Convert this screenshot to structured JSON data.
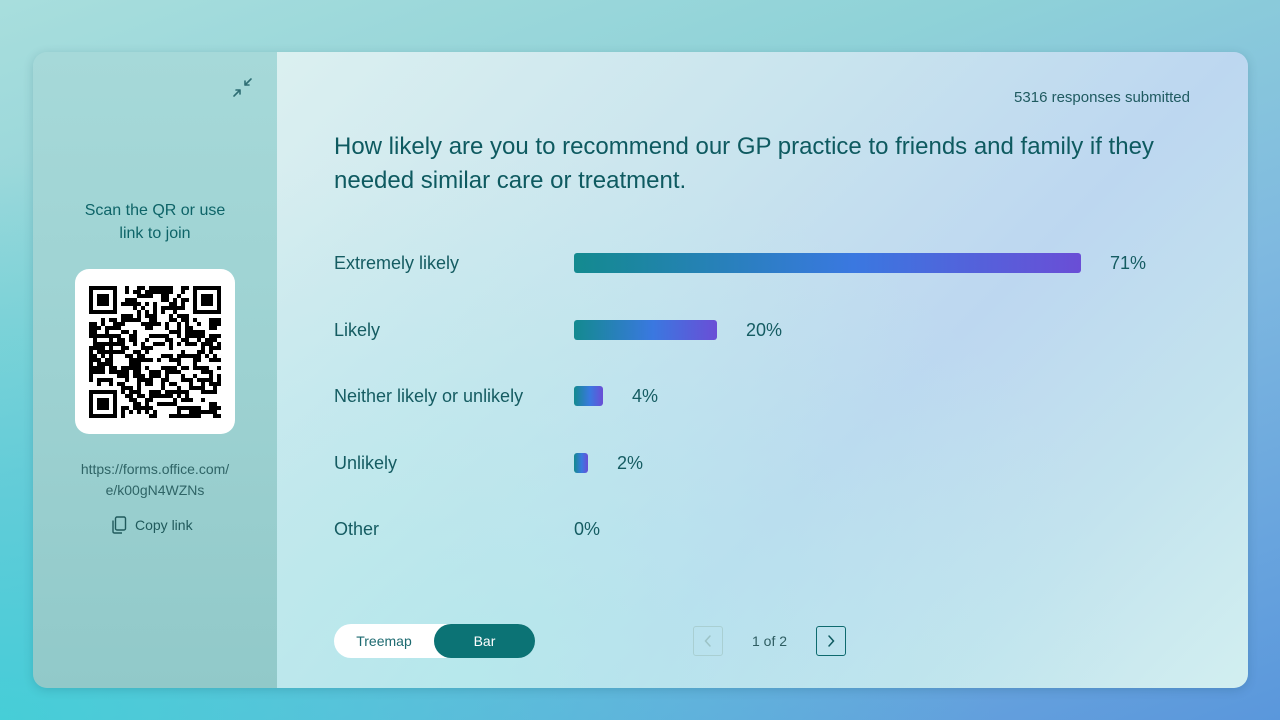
{
  "sidebar": {
    "join_text_line1": "Scan the QR or use",
    "join_text_line2": "link to join",
    "link_line1": "https://forms.office.com/",
    "link_line2": "e/k00gN4WZNs",
    "copy_label": "Copy link"
  },
  "header": {
    "responses": "5316 responses submitted",
    "question": "How likely are you to recommend our GP practice to friends and family if they needed similar care or treatment."
  },
  "chart_data": {
    "type": "bar",
    "orientation": "horizontal",
    "categories": [
      "Extremely likely",
      "Likely",
      "Neither likely or unlikely",
      "Unlikely",
      "Other"
    ],
    "values": [
      71,
      20,
      4,
      2,
      0
    ],
    "labels": [
      "71%",
      "20%",
      "4%",
      "2%",
      "0%"
    ],
    "xlim": [
      0,
      71
    ]
  },
  "view_toggle": {
    "treemap_label": "Treemap",
    "bar_label": "Bar",
    "selected": "Bar"
  },
  "pager": {
    "text": "1 of 2"
  },
  "colors": {
    "accent": "#0c7375",
    "bar_start": "#138a8f",
    "bar_mid": "#3a78e0",
    "bar_end": "#6a4ed6"
  }
}
